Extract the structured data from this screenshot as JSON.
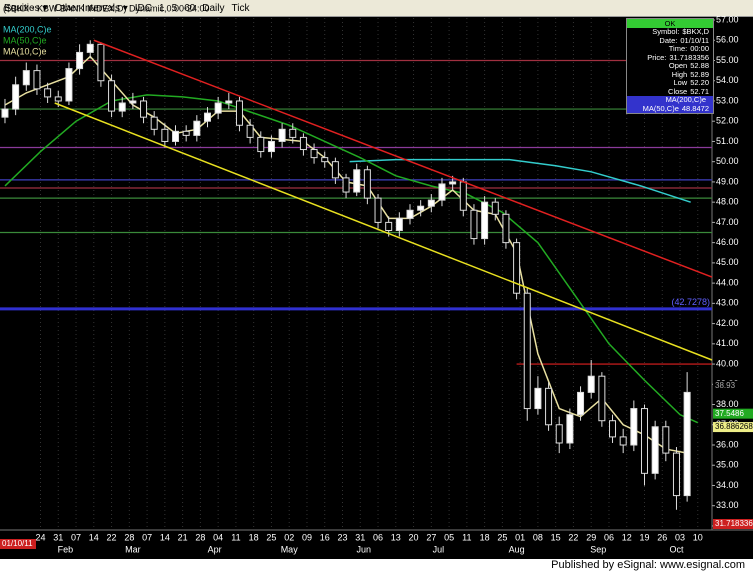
{
  "toolbar": {
    "items": [
      "Equities ▾",
      "Other Intervals ▾",
      "IDC",
      "1",
      "5",
      "60",
      "Daily",
      "Tick"
    ]
  },
  "title": "($BKX - KBW BANK INDEX,D) Dynamic,0:00-24:00",
  "legend": [
    {
      "label": "MA(200,C)e",
      "color": "#33cccc"
    },
    {
      "label": "MA(50,C)e",
      "color": "#22aa22"
    },
    {
      "label": "MA(10,C)e",
      "color": "#e8e0a0"
    }
  ],
  "info_box": {
    "header": "OK",
    "rows": [
      [
        "Symbol:",
        "$BKX,D"
      ],
      [
        "Date:",
        "01/10/11"
      ],
      [
        "Time:",
        "00:00"
      ],
      [
        "Price:",
        "31.7183356"
      ],
      [
        "Open",
        "52.88"
      ],
      [
        "High",
        "52.89"
      ],
      [
        "Low",
        "52.20"
      ],
      [
        "Close",
        "52.71"
      ],
      [
        "MA(200,C)e",
        ""
      ],
      [
        "MA(50,C)e",
        "48.8472"
      ]
    ]
  },
  "cursor_date": "01/10/11",
  "footer": "Published by eSignal: www.esignal.com",
  "chart_data": {
    "type": "candlestick",
    "xlim": [
      -1.4,
      199
    ],
    "ylim": [
      31.8,
      57.1
    ],
    "grid": true,
    "x": [
      0,
      3,
      6,
      9,
      12,
      15,
      18,
      21,
      24,
      27,
      30,
      33,
      36,
      39,
      42,
      45,
      48,
      51,
      54,
      57,
      60,
      63,
      66,
      69,
      72,
      75,
      78,
      81,
      84,
      87,
      90,
      93,
      96,
      99,
      102,
      105,
      108,
      111,
      114,
      117,
      120,
      123,
      126,
      129,
      132,
      135,
      138,
      141,
      144,
      147,
      150,
      153,
      156,
      159,
      162,
      165,
      168,
      171,
      174,
      177,
      180,
      183,
      186,
      189,
      192
    ],
    "open": [
      52.2,
      52.6,
      53.8,
      54.5,
      53.6,
      53.2,
      53.0,
      54.6,
      55.4,
      55.8,
      54.0,
      52.5,
      52.9,
      53.0,
      52.2,
      51.6,
      51.0,
      51.5,
      51.3,
      52.0,
      52.4,
      52.9,
      53.0,
      51.8,
      51.2,
      50.5,
      51.0,
      51.6,
      51.2,
      50.6,
      50.2,
      50.0,
      49.2,
      48.5,
      49.6,
      48.2,
      47.0,
      46.6,
      47.2,
      47.6,
      47.8,
      48.1,
      48.9,
      49.0,
      47.6,
      46.2,
      48.0,
      47.4,
      46.0,
      43.5,
      37.8,
      38.8,
      37.0,
      36.1,
      37.5,
      38.6,
      39.4,
      37.2,
      36.4,
      36.0,
      37.8,
      34.6,
      36.9,
      35.6,
      33.5
    ],
    "high": [
      53.1,
      54.2,
      54.9,
      54.8,
      53.9,
      53.5,
      54.9,
      55.8,
      56.0,
      55.9,
      54.3,
      53.2,
      53.4,
      53.2,
      52.5,
      51.9,
      51.8,
      51.8,
      52.3,
      52.7,
      53.2,
      53.4,
      53.2,
      52.1,
      51.5,
      51.3,
      51.9,
      51.9,
      51.4,
      50.9,
      50.5,
      50.2,
      49.4,
      49.9,
      49.8,
      48.4,
      47.3,
      47.5,
      47.9,
      48.1,
      48.4,
      49.2,
      49.3,
      49.2,
      47.9,
      48.3,
      48.2,
      47.6,
      46.2,
      43.8,
      39.4,
      39.1,
      37.4,
      37.8,
      38.9,
      40.2,
      39.6,
      37.5,
      36.8,
      38.2,
      38.0,
      37.2,
      37.2,
      35.9,
      39.6
    ],
    "low": [
      51.9,
      52.3,
      53.5,
      53.3,
      52.9,
      52.7,
      52.8,
      54.3,
      55.1,
      53.7,
      52.2,
      52.2,
      52.6,
      51.9,
      51.3,
      50.7,
      50.8,
      51.0,
      51.0,
      51.7,
      52.1,
      52.6,
      51.5,
      50.9,
      50.2,
      50.2,
      50.7,
      50.9,
      50.3,
      49.9,
      49.7,
      48.9,
      48.2,
      48.3,
      47.9,
      46.7,
      46.3,
      46.3,
      46.9,
      47.3,
      47.5,
      47.8,
      48.6,
      47.3,
      45.9,
      45.9,
      47.1,
      45.7,
      43.2,
      37.2,
      37.5,
      36.7,
      35.6,
      35.8,
      37.2,
      38.3,
      36.9,
      36.1,
      35.6,
      35.7,
      34.0,
      34.3,
      35.2,
      32.8,
      33.2
    ],
    "close": [
      52.6,
      53.8,
      54.5,
      53.6,
      53.2,
      53.0,
      54.6,
      55.4,
      55.8,
      54.0,
      52.5,
      52.9,
      53.0,
      52.2,
      51.6,
      51.0,
      51.5,
      51.3,
      52.0,
      52.4,
      52.9,
      53.0,
      51.8,
      51.2,
      50.5,
      51.0,
      51.6,
      51.2,
      50.6,
      50.2,
      50.0,
      49.2,
      48.5,
      49.6,
      48.2,
      47.0,
      46.6,
      47.2,
      47.6,
      47.8,
      48.1,
      48.9,
      49.0,
      47.6,
      46.2,
      48.0,
      47.4,
      46.0,
      43.5,
      37.8,
      38.8,
      37.0,
      36.1,
      37.5,
      38.6,
      39.4,
      37.2,
      36.4,
      36.0,
      37.8,
      34.6,
      36.9,
      35.6,
      33.5,
      38.6
    ],
    "series": [
      {
        "name": "MA(200,C)e",
        "color": "#33cccc",
        "x": [
          97,
          110,
          125,
          142,
          155,
          165,
          179,
          193
        ],
        "values": [
          50.0,
          50.1,
          50.1,
          50.1,
          49.8,
          49.5,
          48.8,
          48.0
        ]
      },
      {
        "name": "MA(50,C)e",
        "color": "#22aa22",
        "x": [
          0,
          10,
          20,
          30,
          40,
          50,
          60,
          70,
          80,
          90,
          100,
          110,
          120,
          130,
          140,
          150,
          160,
          170,
          180,
          190,
          195
        ],
        "values": [
          48.8,
          50.5,
          52.0,
          53.0,
          53.3,
          53.2,
          53.0,
          52.4,
          51.8,
          51.0,
          50.2,
          49.3,
          48.8,
          48.4,
          47.5,
          46.0,
          43.5,
          41.0,
          39.2,
          37.5,
          37.1
        ]
      },
      {
        "name": "MA(10,C)e",
        "color": "#e8e0a0",
        "x": [
          0,
          6,
          12,
          18,
          24,
          30,
          36,
          42,
          48,
          54,
          60,
          66,
          72,
          78,
          84,
          90,
          96,
          102,
          108,
          114,
          120,
          126,
          132,
          138,
          144,
          150,
          156,
          162,
          168,
          174,
          180,
          186,
          192
        ],
        "values": [
          52.8,
          53.4,
          53.8,
          54.2,
          55.2,
          54.0,
          52.8,
          52.2,
          51.4,
          51.6,
          52.5,
          52.5,
          51.2,
          51.1,
          51.0,
          50.2,
          49.0,
          48.8,
          47.2,
          47.2,
          47.8,
          48.6,
          47.6,
          47.4,
          45.5,
          40.5,
          37.8,
          37.4,
          38.3,
          37.0,
          36.5,
          35.8,
          35.6
        ]
      }
    ],
    "trendlines": [
      {
        "x": [
          25,
          199
        ],
        "y": [
          56.0,
          44.3
        ],
        "color": "#e02020"
      },
      {
        "x": [
          14,
          199
        ],
        "y": [
          52.9,
          40.2
        ],
        "color": "#e8e020"
      }
    ],
    "hlines": [
      {
        "value": 55.0,
        "color": "#a03040"
      },
      {
        "value": 52.6,
        "color": "#3a8a3a"
      },
      {
        "value": 50.7,
        "color": "#8a3a9a"
      },
      {
        "value": 49.1,
        "color": "#4040c0"
      },
      {
        "value": 48.7,
        "color": "#a03040"
      },
      {
        "value": 48.2,
        "color": "#3a8a3a"
      },
      {
        "value": 46.5,
        "color": "#3a8a3a"
      },
      {
        "value": 42.7278,
        "color": "#3030d0",
        "label": "(42.7278)"
      }
    ],
    "segment": {
      "x": [
        144,
        199
      ],
      "value": 40.0,
      "color": "#e02020"
    },
    "tags": [
      {
        "value": 38.93,
        "label": "38.93",
        "bg": "#000",
        "fg": "#aaa"
      },
      {
        "value": 37.5486,
        "label": "37.5486",
        "bg": "#22aa22",
        "fg": "#fff"
      },
      {
        "value": 36.886268,
        "label": "36.886268",
        "bg": "#eeee88",
        "fg": "#000"
      },
      {
        "value": 31.718336,
        "label": "31.718336",
        "bg": "#cc2020",
        "fg": "#fff"
      }
    ],
    "yticks": [
      {
        "value": 57,
        "label": "57.00"
      },
      {
        "value": 56,
        "label": "56.00"
      },
      {
        "value": 55,
        "label": "55.00"
      },
      {
        "value": 54,
        "label": "54.00"
      },
      {
        "value": 53,
        "label": "53.00"
      },
      {
        "value": 52,
        "label": "52.00"
      },
      {
        "value": 51,
        "label": "51.00"
      },
      {
        "value": 50,
        "label": "50.00"
      },
      {
        "value": 49,
        "label": "49.00"
      },
      {
        "value": 48,
        "label": "48.00"
      },
      {
        "value": 47,
        "label": "47.00"
      },
      {
        "value": 46,
        "label": "46.00"
      },
      {
        "value": 45,
        "label": "45.00"
      },
      {
        "value": 44,
        "label": "44.00"
      },
      {
        "value": 43,
        "label": "43.00"
      },
      {
        "value": 42,
        "label": "42.00"
      },
      {
        "value": 41,
        "label": "41.00"
      },
      {
        "value": 40,
        "label": "40.00"
      },
      {
        "value": 39,
        "label": "39.00"
      },
      {
        "value": 38,
        "label": "38.00"
      },
      {
        "value": 37,
        "label": "37.00"
      },
      {
        "value": 36,
        "label": "36.00"
      },
      {
        "value": 35,
        "label": "35.00"
      },
      {
        "value": 34,
        "label": "34.00"
      },
      {
        "value": 33,
        "label": "33.00"
      },
      {
        "value": 32,
        "label": "32.00"
      }
    ],
    "xticks": [
      {
        "value": 10,
        "label": "24"
      },
      {
        "value": 15,
        "label": "31"
      },
      {
        "value": 20,
        "label": "07"
      },
      {
        "value": 25,
        "label": "14"
      },
      {
        "value": 30,
        "label": "22"
      },
      {
        "value": 35,
        "label": "28"
      },
      {
        "value": 40,
        "label": "07"
      },
      {
        "value": 45,
        "label": "14"
      },
      {
        "value": 50,
        "label": "21"
      },
      {
        "value": 55,
        "label": "28"
      },
      {
        "value": 60,
        "label": "04"
      },
      {
        "value": 65,
        "label": "11"
      },
      {
        "value": 70,
        "label": "18"
      },
      {
        "value": 75,
        "label": "25"
      },
      {
        "value": 80,
        "label": "02"
      },
      {
        "value": 85,
        "label": "09"
      },
      {
        "value": 90,
        "label": "16"
      },
      {
        "value": 95,
        "label": "23"
      },
      {
        "value": 100,
        "label": "31"
      },
      {
        "value": 105,
        "label": "06"
      },
      {
        "value": 110,
        "label": "13"
      },
      {
        "value": 115,
        "label": "20"
      },
      {
        "value": 120,
        "label": "27"
      },
      {
        "value": 125,
        "label": "05"
      },
      {
        "value": 130,
        "label": "11"
      },
      {
        "value": 135,
        "label": "18"
      },
      {
        "value": 140,
        "label": "25"
      },
      {
        "value": 145,
        "label": "01"
      },
      {
        "value": 150,
        "label": "08"
      },
      {
        "value": 155,
        "label": "15"
      },
      {
        "value": 160,
        "label": "22"
      },
      {
        "value": 165,
        "label": "29"
      },
      {
        "value": 170,
        "label": "06"
      },
      {
        "value": 175,
        "label": "12"
      },
      {
        "value": 180,
        "label": "19"
      },
      {
        "value": 185,
        "label": "26"
      },
      {
        "value": 190,
        "label": "03"
      },
      {
        "value": 195,
        "label": "10"
      }
    ],
    "months": [
      {
        "value": 17,
        "label": "Feb"
      },
      {
        "value": 36,
        "label": "Mar"
      },
      {
        "value": 59,
        "label": "Apr"
      },
      {
        "value": 80,
        "label": "May"
      },
      {
        "value": 101,
        "label": "Jun"
      },
      {
        "value": 122,
        "label": "Jul"
      },
      {
        "value": 144,
        "label": "Aug"
      },
      {
        "value": 167,
        "label": "Sep"
      },
      {
        "value": 189,
        "label": "Oct"
      }
    ]
  }
}
